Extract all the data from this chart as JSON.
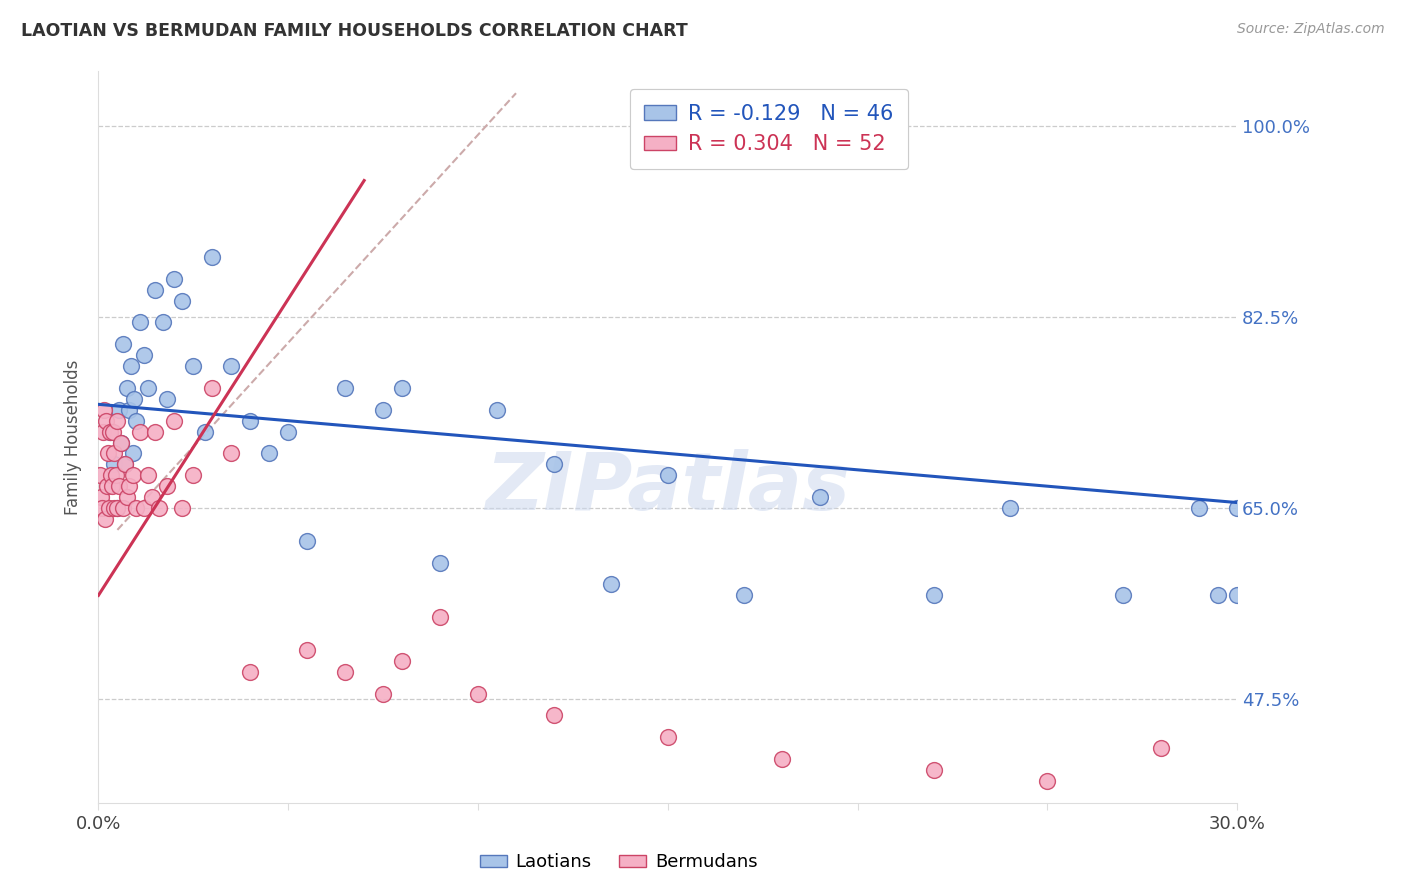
{
  "title": "LAOTIAN VS BERMUDAN FAMILY HOUSEHOLDS CORRELATION CHART",
  "source": "Source: ZipAtlas.com",
  "ylabel": "Family Households",
  "yticks": [
    47.5,
    65.0,
    82.5,
    100.0
  ],
  "ytick_labels": [
    "47.5%",
    "65.0%",
    "82.5%",
    "100.0%"
  ],
  "xmin": 0.0,
  "xmax": 30.0,
  "ymin": 38.0,
  "ymax": 105.0,
  "watermark": "ZIPatlas",
  "laotian_color": "#a8c4e8",
  "laotian_edge": "#5577bb",
  "bermudan_color": "#f5b0c5",
  "bermudan_edge": "#cc4466",
  "laotian_line_color": "#2255bb",
  "bermudan_line_color": "#cc3355",
  "dashed_line_color": "#ccaaaa",
  "legend_laotian_R": "-0.129",
  "legend_laotian_N": "46",
  "legend_bermudan_R": "0.304",
  "legend_bermudan_N": "52",
  "laotian_x": [
    0.3,
    0.4,
    0.5,
    0.55,
    0.6,
    0.65,
    0.7,
    0.75,
    0.8,
    0.85,
    0.9,
    0.95,
    1.0,
    1.1,
    1.2,
    1.3,
    1.5,
    1.7,
    1.8,
    2.0,
    2.2,
    2.5,
    2.8,
    3.0,
    3.5,
    4.0,
    4.5,
    5.0,
    5.5,
    6.5,
    7.5,
    8.0,
    9.0,
    10.5,
    12.0,
    13.5,
    15.0,
    17.0,
    19.0,
    22.0,
    24.0,
    27.0,
    29.0,
    29.5,
    30.0,
    30.0
  ],
  "laotian_y": [
    72.0,
    69.0,
    65.0,
    74.0,
    71.0,
    80.0,
    69.0,
    76.0,
    74.0,
    78.0,
    70.0,
    75.0,
    73.0,
    82.0,
    79.0,
    76.0,
    85.0,
    82.0,
    75.0,
    86.0,
    84.0,
    78.0,
    72.0,
    88.0,
    78.0,
    73.0,
    70.0,
    72.0,
    62.0,
    76.0,
    74.0,
    76.0,
    60.0,
    74.0,
    69.0,
    58.0,
    68.0,
    57.0,
    66.0,
    57.0,
    65.0,
    57.0,
    65.0,
    57.0,
    65.0,
    57.0
  ],
  "bermudan_x": [
    0.05,
    0.08,
    0.1,
    0.12,
    0.15,
    0.18,
    0.2,
    0.22,
    0.25,
    0.28,
    0.3,
    0.32,
    0.35,
    0.38,
    0.4,
    0.42,
    0.45,
    0.48,
    0.5,
    0.55,
    0.6,
    0.65,
    0.7,
    0.75,
    0.8,
    0.9,
    1.0,
    1.1,
    1.2,
    1.3,
    1.4,
    1.5,
    1.6,
    1.8,
    2.0,
    2.2,
    2.5,
    3.0,
    3.5,
    4.0,
    5.5,
    6.5,
    7.5,
    8.0,
    9.0,
    10.0,
    12.0,
    15.0,
    18.0,
    22.0,
    25.0,
    28.0
  ],
  "bermudan_y": [
    68.0,
    66.0,
    65.0,
    72.0,
    74.0,
    64.0,
    73.0,
    67.0,
    70.0,
    65.0,
    72.0,
    68.0,
    67.0,
    72.0,
    65.0,
    70.0,
    68.0,
    65.0,
    73.0,
    67.0,
    71.0,
    65.0,
    69.0,
    66.0,
    67.0,
    68.0,
    65.0,
    72.0,
    65.0,
    68.0,
    66.0,
    72.0,
    65.0,
    67.0,
    73.0,
    65.0,
    68.0,
    76.0,
    70.0,
    50.0,
    52.0,
    50.0,
    48.0,
    51.0,
    55.0,
    48.0,
    46.0,
    44.0,
    42.0,
    41.0,
    40.0,
    43.0
  ],
  "laotian_trend_x0": 0.0,
  "laotian_trend_y0": 74.5,
  "laotian_trend_x1": 30.0,
  "laotian_trend_y1": 65.5,
  "bermudan_trend_x0": 0.0,
  "bermudan_trend_y0": 57.0,
  "bermudan_trend_x1": 7.0,
  "bermudan_trend_y1": 95.0,
  "dashed_x0": 0.5,
  "dashed_y0": 63.0,
  "dashed_x1": 11.0,
  "dashed_y1": 103.0
}
